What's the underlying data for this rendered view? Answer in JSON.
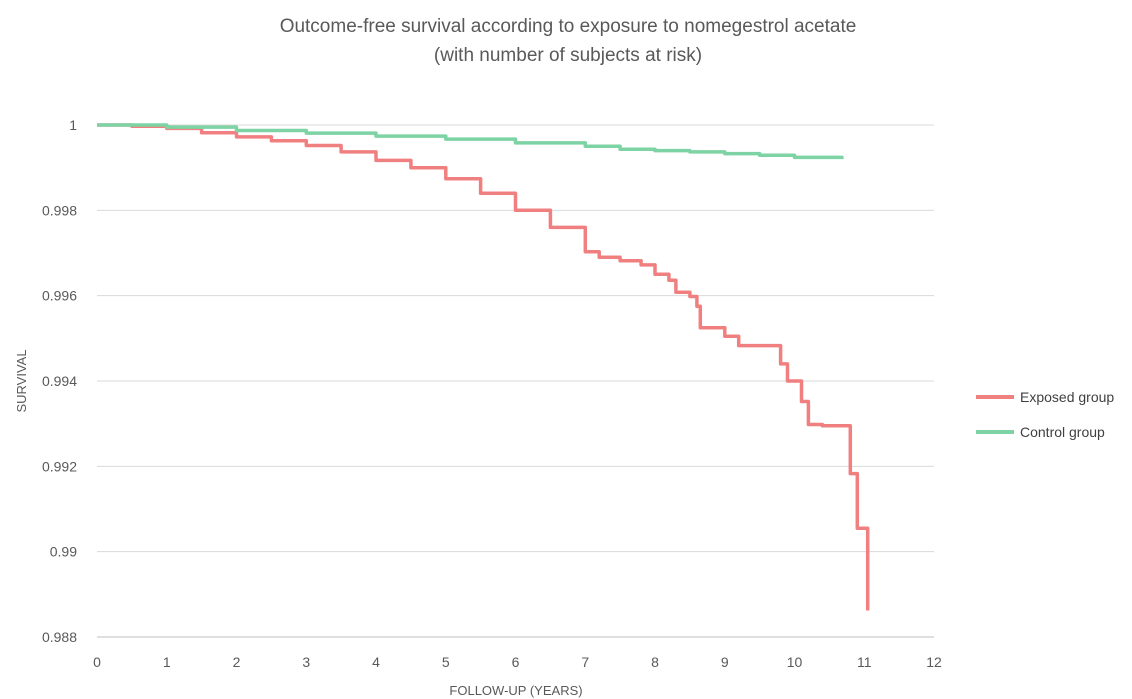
{
  "chart_data": {
    "type": "line",
    "title_lines": [
      "Outcome-free survival according to exposure to nomegestrol acetate",
      "(with number of subjects at risk)"
    ],
    "xlabel": "FOLLOW-UP (YEARS)",
    "ylabel": "SURVIVAL",
    "xlim": [
      0,
      12
    ],
    "ylim": [
      0.988,
      1.0
    ],
    "x_ticks": [
      0,
      1,
      2,
      3,
      4,
      5,
      6,
      7,
      8,
      9,
      10,
      11,
      12
    ],
    "x_tick_labels": [
      "0",
      "1",
      "2",
      "3",
      "4",
      "5",
      "6",
      "7",
      "8",
      "9",
      "10",
      "11",
      "12"
    ],
    "y_ticks": [
      0.988,
      0.99,
      0.992,
      0.994,
      0.996,
      0.998,
      1.0
    ],
    "y_tick_labels": [
      "0.988",
      "0.99",
      "0.992",
      "0.994",
      "0.996",
      "0.998",
      "1"
    ],
    "grid": "horizontal",
    "legend_position": "right",
    "step": true,
    "series": [
      {
        "name": "Exposed group",
        "color": "#f08080",
        "points": [
          [
            0,
            1.0
          ],
          [
            0.5,
            0.99997
          ],
          [
            1.0,
            0.99992
          ],
          [
            1.5,
            0.99982
          ],
          [
            2.0,
            0.99972
          ],
          [
            2.5,
            0.99963
          ],
          [
            3.0,
            0.99952
          ],
          [
            3.5,
            0.99937
          ],
          [
            4.0,
            0.99917
          ],
          [
            4.5,
            0.999
          ],
          [
            5.0,
            0.99874
          ],
          [
            5.5,
            0.9984
          ],
          [
            6.0,
            0.998
          ],
          [
            6.5,
            0.9976
          ],
          [
            7.0,
            0.99703
          ],
          [
            7.2,
            0.9969
          ],
          [
            7.5,
            0.99682
          ],
          [
            7.8,
            0.99672
          ],
          [
            8.0,
            0.9965
          ],
          [
            8.2,
            0.99636
          ],
          [
            8.3,
            0.99608
          ],
          [
            8.5,
            0.99598
          ],
          [
            8.6,
            0.99575
          ],
          [
            8.65,
            0.99525
          ],
          [
            9.0,
            0.99505
          ],
          [
            9.2,
            0.99483
          ],
          [
            9.8,
            0.9944
          ],
          [
            9.9,
            0.994
          ],
          [
            10.1,
            0.99352
          ],
          [
            10.2,
            0.99298
          ],
          [
            10.4,
            0.99295
          ],
          [
            10.8,
            0.99183
          ],
          [
            10.9,
            0.99055
          ],
          [
            11.05,
            0.98862
          ]
        ]
      },
      {
        "name": "Control group",
        "color": "#7dd3a3",
        "points": [
          [
            0,
            1.0
          ],
          [
            1.0,
            0.99995
          ],
          [
            2.0,
            0.99987
          ],
          [
            3.0,
            0.99981
          ],
          [
            4.0,
            0.99974
          ],
          [
            5.0,
            0.99967
          ],
          [
            6.0,
            0.99958
          ],
          [
            7.0,
            0.9995
          ],
          [
            7.5,
            0.99943
          ],
          [
            8.0,
            0.9994
          ],
          [
            8.5,
            0.99937
          ],
          [
            9.0,
            0.99933
          ],
          [
            9.5,
            0.99929
          ],
          [
            10.0,
            0.99924
          ],
          [
            10.68,
            0.9992
          ]
        ]
      }
    ]
  }
}
